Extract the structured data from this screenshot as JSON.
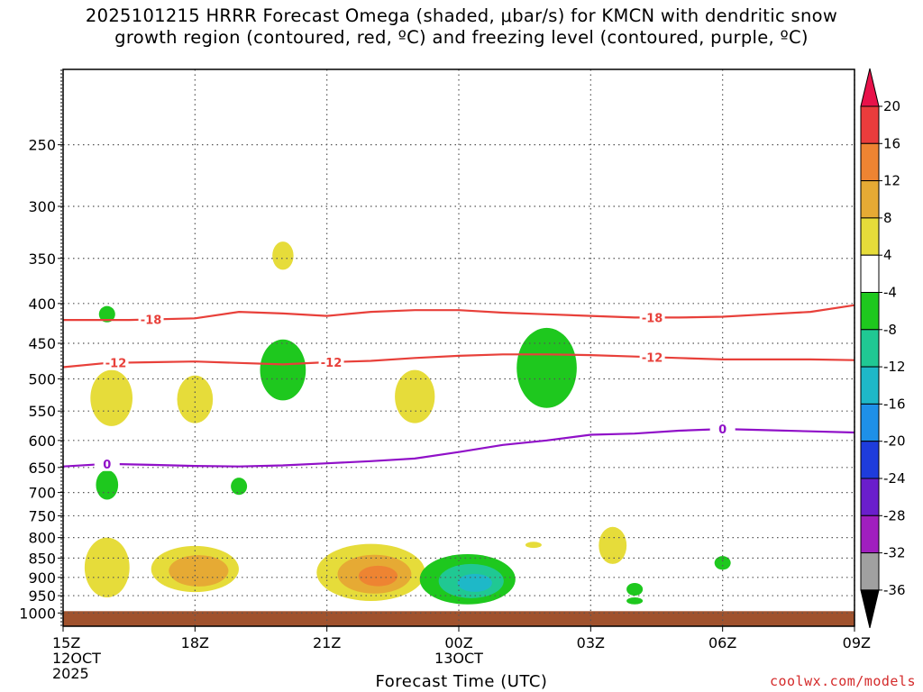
{
  "chart_data": {
    "type": "contour-timeheight",
    "title_line1": "2025101215 HRRR Forecast Omega (shaded, μbar/s) for KMCN with dendritic snow",
    "title_line2": "growth region (contoured, red, ºC) and freezing level (contoured, purple, ºC)",
    "xlabel": "Forecast Time (UTC)",
    "credit": "coolwx.com/models",
    "x_ticks": [
      {
        "hour": 0,
        "label": "15Z",
        "sub1": "12OCT",
        "sub2": "2025"
      },
      {
        "hour": 3,
        "label": "18Z"
      },
      {
        "hour": 6,
        "label": "21Z"
      },
      {
        "hour": 9,
        "label": "00Z",
        "sub1": "13OCT"
      },
      {
        "hour": 12,
        "label": "03Z"
      },
      {
        "hour": 15,
        "label": "06Z"
      },
      {
        "hour": 18,
        "label": "09Z"
      }
    ],
    "x_range_hours": [
      0,
      18
    ],
    "y_ticks_hpa": [
      250,
      300,
      350,
      400,
      450,
      500,
      550,
      600,
      650,
      700,
      750,
      800,
      850,
      900,
      950,
      1000
    ],
    "y_range_hpa": [
      200,
      1040
    ],
    "surface_hpa": 1000,
    "colorbar": {
      "labels": [
        "20",
        "16",
        "12",
        "8",
        "4",
        "-4",
        "-8",
        "-12",
        "-16",
        "-20",
        "-24",
        "-28",
        "-32",
        "-36"
      ],
      "colors": [
        "#e8124a",
        "#ea3c3c",
        "#ee8432",
        "#e6aa34",
        "#e6dc3a",
        "#ffffff",
        "#1ec81e",
        "#20c893",
        "#1eb8c8",
        "#1e90e8",
        "#1e3cdc",
        "#6a1ecc",
        "#a01ebe",
        "#a0a0a0",
        "#000000"
      ]
    },
    "contours": {
      "dgz_upper": {
        "label": "-18",
        "color": "#e8403a",
        "points": [
          [
            0,
            420
          ],
          [
            1.5,
            420
          ],
          [
            3,
            418
          ],
          [
            4,
            410
          ],
          [
            5,
            412
          ],
          [
            6,
            415
          ],
          [
            7,
            410
          ],
          [
            8,
            408
          ],
          [
            9,
            408
          ],
          [
            10,
            411
          ],
          [
            11,
            413
          ],
          [
            12,
            415
          ],
          [
            13,
            417
          ],
          [
            14,
            417
          ],
          [
            15,
            416
          ],
          [
            16,
            413
          ],
          [
            17,
            410
          ],
          [
            18,
            402
          ]
        ],
        "label_hours": [
          2,
          13.4
        ]
      },
      "dgz_lower": {
        "label": "-12",
        "color": "#e8403a",
        "points": [
          [
            0,
            483
          ],
          [
            1,
            477
          ],
          [
            2,
            476
          ],
          [
            3,
            475
          ],
          [
            4,
            477
          ],
          [
            5,
            479
          ],
          [
            6,
            476
          ],
          [
            7,
            474
          ],
          [
            8,
            470
          ],
          [
            9,
            467
          ],
          [
            10,
            465
          ],
          [
            11,
            465
          ],
          [
            12,
            466
          ],
          [
            13,
            468
          ],
          [
            14,
            470
          ],
          [
            15,
            472
          ],
          [
            16,
            472
          ],
          [
            17,
            472
          ],
          [
            18,
            473
          ]
        ],
        "label_hours": [
          1.2,
          6.1,
          13.4
        ]
      },
      "freezing": {
        "label": "0",
        "color": "#9010c8",
        "points": [
          [
            0,
            648
          ],
          [
            1,
            643
          ],
          [
            2,
            645
          ],
          [
            3,
            647
          ],
          [
            4,
            648
          ],
          [
            5,
            646
          ],
          [
            6,
            642
          ],
          [
            7,
            638
          ],
          [
            8,
            633
          ],
          [
            9,
            621
          ],
          [
            10,
            608
          ],
          [
            11,
            600
          ],
          [
            12,
            590
          ],
          [
            13,
            588
          ],
          [
            14,
            583
          ],
          [
            15,
            580
          ],
          [
            16,
            582
          ],
          [
            17,
            584
          ],
          [
            18,
            586
          ]
        ],
        "label_hours": [
          1,
          15
        ]
      }
    },
    "omega_features": [
      {
        "kind": "ascent",
        "value": -6,
        "hour": 1.0,
        "p_top": 403,
        "p_bot": 423
      },
      {
        "kind": "descent",
        "value": 5,
        "hour": 1.1,
        "p_top": 487,
        "p_bot": 575
      },
      {
        "kind": "descent",
        "value": 5,
        "hour": 3.0,
        "p_top": 495,
        "p_bot": 570
      },
      {
        "kind": "descent",
        "value": 5,
        "hour": 5.0,
        "p_top": 333,
        "p_bot": 362
      },
      {
        "kind": "ascent",
        "value": -6,
        "hour": 5.0,
        "p_top": 445,
        "p_bot": 533
      },
      {
        "kind": "descent",
        "value": 5,
        "hour": 8.0,
        "p_top": 487,
        "p_bot": 570
      },
      {
        "kind": "ascent",
        "value": -6,
        "hour": 11.0,
        "p_top": 430,
        "p_bot": 545
      },
      {
        "kind": "ascent",
        "value": -6,
        "hour": 1.0,
        "p_top": 655,
        "p_bot": 715
      },
      {
        "kind": "ascent",
        "value": -6,
        "hour": 4.0,
        "p_top": 670,
        "p_bot": 705
      },
      {
        "kind": "descent",
        "value": 6,
        "hour": 1.0,
        "p_top": 800,
        "p_bot": 955
      },
      {
        "kind": "descent",
        "value": 10,
        "hour": 3.0,
        "p_top": 820,
        "p_bot": 940
      },
      {
        "kind": "descent",
        "value": 14,
        "hour": 7.0,
        "p_top": 815,
        "p_bot": 965
      },
      {
        "kind": "ascent",
        "value": -13,
        "hour": 9.2,
        "p_top": 840,
        "p_bot": 975
      },
      {
        "kind": "descent",
        "value": 5,
        "hour": 10.7,
        "p_top": 810,
        "p_bot": 825
      },
      {
        "kind": "descent",
        "value": 5,
        "hour": 12.5,
        "p_top": 775,
        "p_bot": 865
      },
      {
        "kind": "ascent",
        "value": -6,
        "hour": 13.0,
        "p_top": 915,
        "p_bot": 950
      },
      {
        "kind": "ascent",
        "value": -6,
        "hour": 13.0,
        "p_top": 955,
        "p_bot": 975
      },
      {
        "kind": "ascent",
        "value": -6,
        "hour": 15.0,
        "p_top": 845,
        "p_bot": 880
      }
    ]
  }
}
